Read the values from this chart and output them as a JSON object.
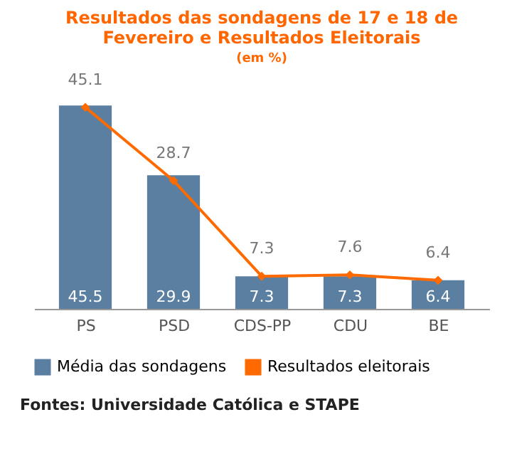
{
  "chart_data": {
    "type": "bar",
    "title": [
      "Resultados das sondagens de 17 e 18 de",
      "Fevereiro e Resultados Eleitorais"
    ],
    "subtitle": "(em %)",
    "categories": [
      "PS",
      "PSD",
      "CDS-PP",
      "CDU",
      "BE"
    ],
    "series": [
      {
        "name": "Média das sondagens",
        "color": "#5b7fa0",
        "values": [
          45.5,
          29.9,
          7.3,
          7.3,
          6.4
        ]
      },
      {
        "name": "Resultados eleitorais",
        "type": "line",
        "color": "#ff6a00",
        "values": [
          45.1,
          28.7,
          7.3,
          7.6,
          6.4
        ]
      }
    ],
    "data_labels": true,
    "marker": "diamond",
    "legend": "bottom",
    "annotations": [
      "Fontes: Universidade Católica e STAPE"
    ]
  }
}
